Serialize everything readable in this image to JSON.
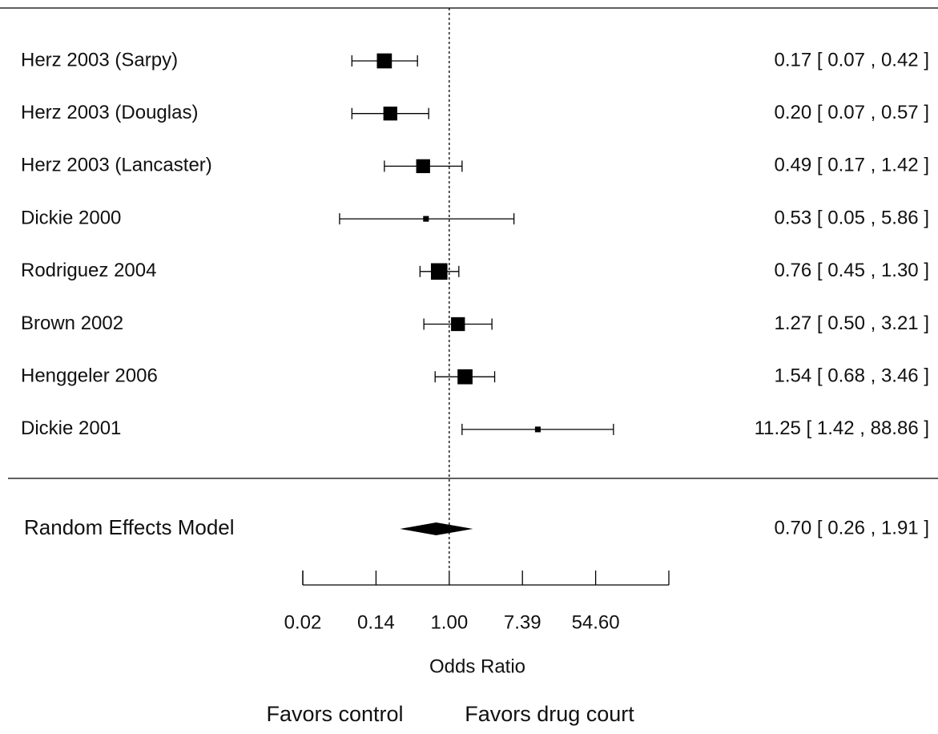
{
  "chart_data": {
    "type": "forest",
    "x_label": "Odds Ratio",
    "left_annotation": "Favors control",
    "right_annotation": "Favors drug court",
    "log_scale": true,
    "xlim": [
      0.0183,
      403.43
    ],
    "xticks": [
      {
        "value": 0.0183,
        "label": "0.02"
      },
      {
        "value": 0.1353,
        "label": "0.14"
      },
      {
        "value": 1,
        "label": "1.00"
      },
      {
        "value": 7.389,
        "label": "7.39"
      },
      {
        "value": 54.598,
        "label": "54.60"
      }
    ],
    "reference_line": 1,
    "color": "#000000",
    "categories": [
      "Herz 2003 (Sarpy)",
      "Herz 2003 (Douglas)",
      "Herz 2003 (Lancaster)",
      "Dickie 2000",
      "Rodriguez 2004",
      "Brown 2002",
      "Henggeler 2006",
      "Dickie 2001"
    ],
    "values": [
      0.17,
      0.2,
      0.49,
      0.53,
      0.76,
      1.27,
      1.54,
      11.25
    ],
    "lower": [
      0.07,
      0.07,
      0.17,
      0.05,
      0.45,
      0.5,
      0.68,
      1.42
    ],
    "upper": [
      0.42,
      0.57,
      1.42,
      5.86,
      1.3,
      3.21,
      3.46,
      88.86
    ],
    "weights": [
      14,
      12,
      12,
      2,
      17,
      12,
      14,
      2
    ],
    "value_labels": [
      "0.17 [ 0.07 ,  0.42 ]",
      "0.20 [ 0.07 ,  0.57 ]",
      "0.49 [ 0.17 ,  1.42 ]",
      "0.53 [ 0.05 ,  5.86 ]",
      "0.76 [ 0.45 ,  1.30 ]",
      "1.27 [ 0.50 ,  3.21 ]",
      "1.54 [ 0.68 ,  3.46 ]",
      "11.25 [ 1.42 , 88.86 ]"
    ],
    "summary": {
      "name": "Random Effects Model",
      "value": 0.7,
      "lower": 0.26,
      "upper": 1.91,
      "value_label": "0.70 [ 0.26 ,  1.91 ]"
    }
  }
}
